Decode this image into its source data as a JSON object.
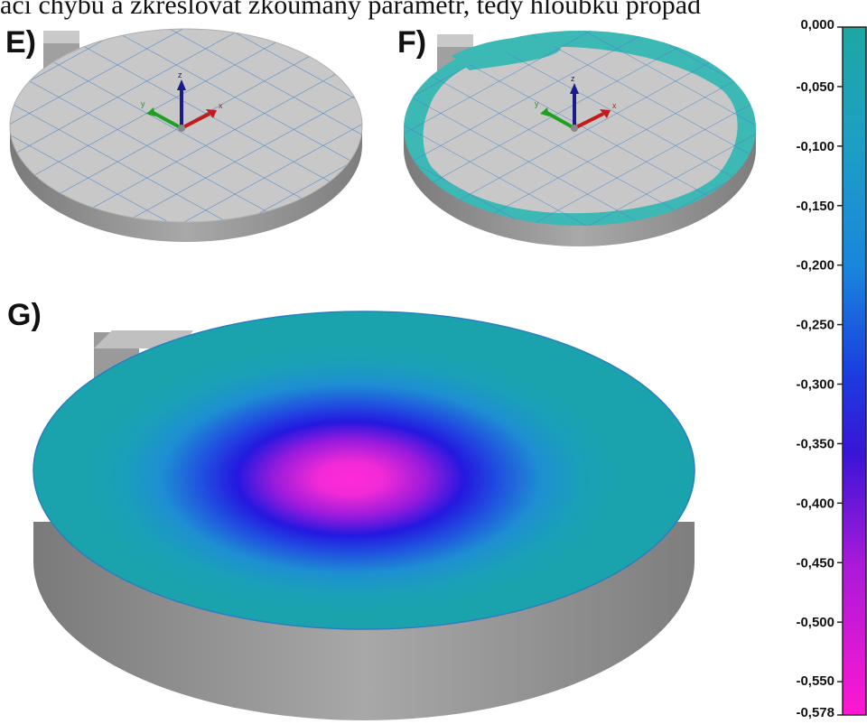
{
  "caption_fragment": "ací chybu a zkreslovat zkoumaný parametr, tedy hloubku propad",
  "panels": {
    "e": {
      "label": "E)"
    },
    "f": {
      "label": "F)"
    },
    "g": {
      "label": "G)"
    }
  },
  "axis_triad": {
    "x_label": "x",
    "y_label": "y",
    "z_label": "z"
  },
  "colorbar": {
    "ticks": [
      "0,000",
      "-0,050",
      "-0,100",
      "-0,150",
      "-0,200",
      "-0,250",
      "-0,300",
      "-0,350",
      "-0,400",
      "-0,450",
      "-0,500",
      "-0,550",
      "-0,578"
    ],
    "range": [
      -0.578,
      0.0
    ],
    "colors": {
      "top": "#1ea7a2",
      "upper": "#1b8fd6",
      "mid": "#1830e0",
      "lower": "#7a18d8",
      "bottom": "#ff18d0"
    }
  },
  "colors": {
    "plate_gray": "#c8c8c8",
    "plate_side": "#8e8e8e",
    "grid_blue": "#4a86c8",
    "teal": "#3cb8b5"
  }
}
